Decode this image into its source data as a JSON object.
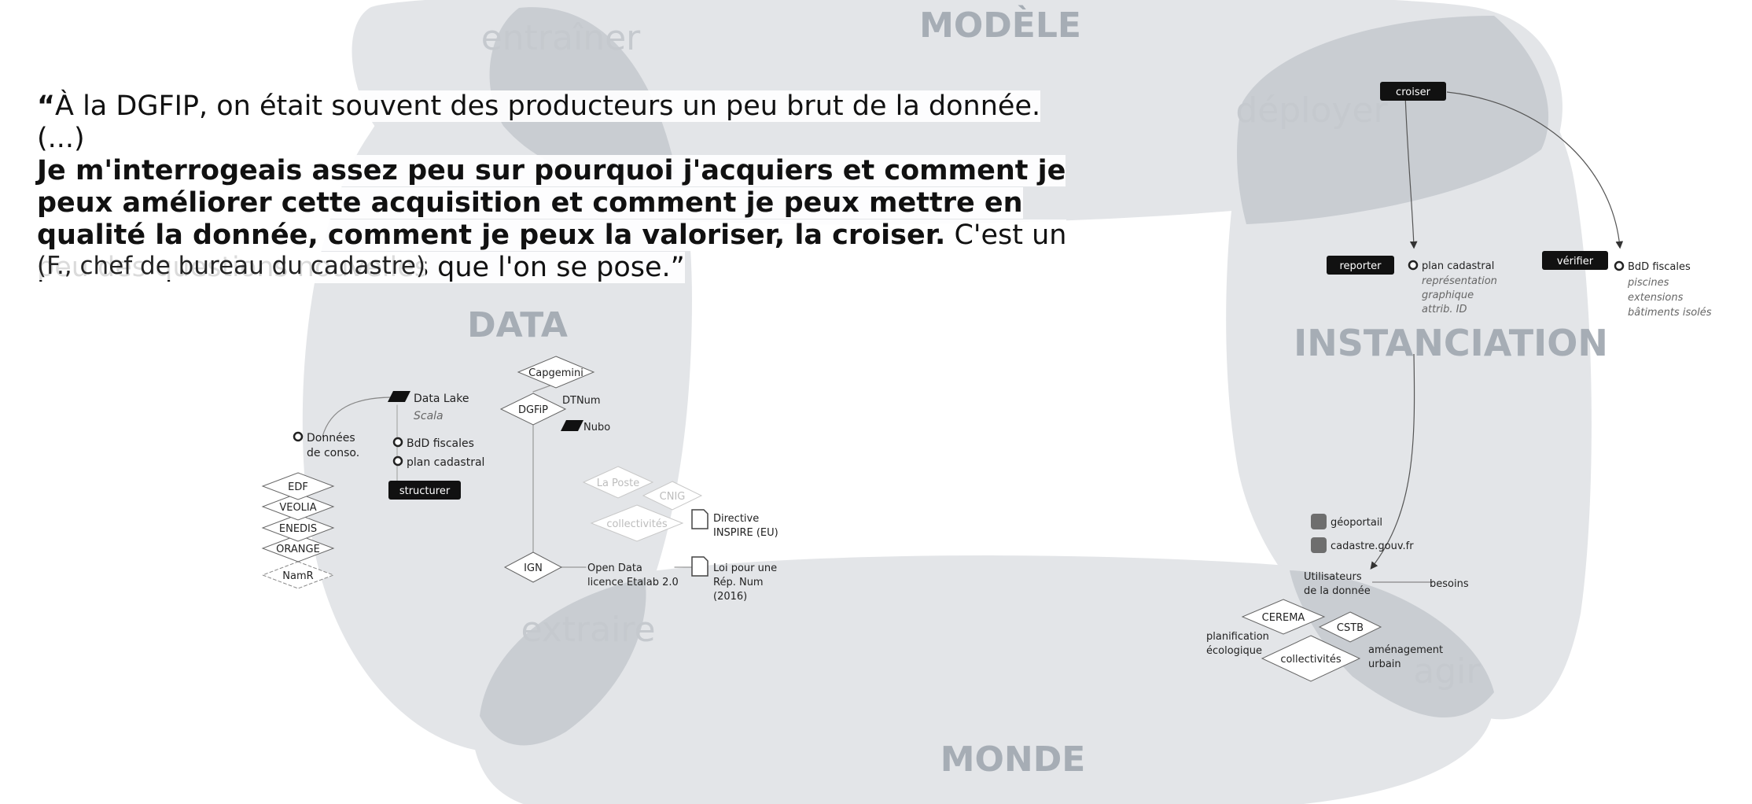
{
  "colors": {
    "blob": "#e3e5e8",
    "blob_dark": "#c6cace",
    "section_label": "#a6adb5",
    "verb_label": "#c9cdd2",
    "tag_bg": "#111111",
    "node_stroke": "#555555",
    "faded": "#bdbdbd"
  },
  "quote": {
    "open_mark": "“",
    "line1": "À la DGFIP, on était souvent des producteurs un peu brut de la donnée. (...)",
    "bold": "Je m'interrogeais assez peu sur pourquoi j'acquiers et comment je peux améliorer cette acquisition et comment je peux mettre en qualité la donnée, comment je peux la valoriser, la croiser.",
    "rest": " C'est un peu des questions nouvelles que l'on se pose.”",
    "attribution": "(F., chef de bureau du cadastre)"
  },
  "sections": {
    "modele": "MODÈLE",
    "data": "DATA",
    "instanciation": "INSTANCIATION",
    "monde": "MONDE"
  },
  "verbs": {
    "entrainer": "entraîner",
    "deployer": "déployer",
    "extraire": "extraire",
    "agir": "agir"
  },
  "data_diagram": {
    "donnees_conso": [
      "Données",
      "de conso."
    ],
    "data_lake": "Data Lake",
    "scala": "Scala",
    "bdd_fiscales": "BdD fiscales",
    "plan_cadastral": "plan cadastral",
    "structurer": "structurer",
    "producers": [
      "EDF",
      "VEOLIA",
      "ENEDIS",
      "ORANGE"
    ],
    "namr": "NamR",
    "capgemini": "Capgemini",
    "dgfip": "DGFiP",
    "dtnum": "DTNum",
    "nubo": "Nubo",
    "la_poste": "La Poste",
    "cnig": "CNIG",
    "collectivites": "collectivités",
    "directive": [
      "Directive",
      "INSPIRE (EU)"
    ],
    "ign": "IGN",
    "open_data": [
      "Open Data",
      "licence Etalab 2.0"
    ],
    "loi": [
      "Loi pour une",
      "Rép. Num",
      "(2016)"
    ]
  },
  "instanciation_diagram": {
    "croiser": "croiser",
    "reporter": "reporter",
    "plan_cadastral": "plan cadastral",
    "plan_details": [
      "représentation",
      "graphique",
      "attrib. ID"
    ],
    "verifier": "vérifier",
    "bdd_fiscales": "BdD fiscales",
    "bdd_details": [
      "piscines",
      "extensions",
      "bâtiments isolés"
    ],
    "geoportail": "géoportail",
    "cadastre": "cadastre.gouv.fr",
    "utilisateurs": [
      "Utilisateurs",
      "de la donnée"
    ],
    "besoins": "besoins",
    "cerema": "CEREMA",
    "cstb": "CSTB",
    "collectivites": "collectivités",
    "planification": [
      "planification",
      "écologique"
    ],
    "amenagement": [
      "aménagement",
      "urbain"
    ]
  }
}
